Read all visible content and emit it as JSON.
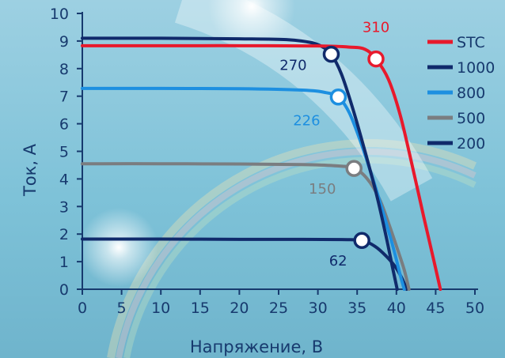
{
  "chart_data": {
    "type": "line",
    "title": "",
    "xlabel": "Напряжение, В",
    "ylabel": "Ток, А",
    "xlim": [
      0,
      50
    ],
    "ylim": [
      0,
      10
    ],
    "x_ticks": [
      0,
      5,
      10,
      15,
      20,
      25,
      30,
      35,
      40,
      45,
      50
    ],
    "y_ticks": [
      0,
      1,
      2,
      3,
      4,
      5,
      6,
      7,
      8,
      9,
      10
    ],
    "grid": false,
    "legend_position": "right",
    "series": [
      {
        "name": "STC",
        "color": "#e8192c",
        "points": [
          [
            0,
            8.83
          ],
          [
            10,
            8.83
          ],
          [
            20,
            8.83
          ],
          [
            30,
            8.82
          ],
          [
            34,
            8.78
          ],
          [
            36,
            8.7
          ],
          [
            37.4,
            8.35
          ],
          [
            39,
            7.6
          ],
          [
            40.5,
            6.3
          ],
          [
            42,
            4.5
          ],
          [
            43.5,
            2.6
          ],
          [
            44.8,
            1.0
          ],
          [
            45.6,
            0
          ]
        ],
        "mpp": {
          "x": 37.4,
          "y": 8.35,
          "label": "310"
        }
      },
      {
        "name": "1000",
        "color": "#102a6b",
        "points": [
          [
            0,
            9.1
          ],
          [
            10,
            9.1
          ],
          [
            20,
            9.08
          ],
          [
            26,
            9.05
          ],
          [
            29,
            8.95
          ],
          [
            30.5,
            8.8
          ],
          [
            31.7,
            8.52
          ],
          [
            33,
            7.8
          ],
          [
            34.5,
            6.5
          ],
          [
            36,
            5.0
          ],
          [
            37.5,
            3.4
          ],
          [
            38.7,
            1.9
          ],
          [
            39.5,
            0.8
          ],
          [
            40.1,
            0
          ]
        ],
        "mpp": {
          "x": 31.7,
          "y": 8.52,
          "label": "270"
        }
      },
      {
        "name": "800",
        "color": "#1d8fe0",
        "points": [
          [
            0,
            7.28
          ],
          [
            10,
            7.28
          ],
          [
            20,
            7.27
          ],
          [
            28,
            7.22
          ],
          [
            31,
            7.13
          ],
          [
            32.6,
            6.97
          ],
          [
            34,
            6.4
          ],
          [
            35.5,
            5.3
          ],
          [
            37,
            4.0
          ],
          [
            38.5,
            2.6
          ],
          [
            39.7,
            1.4
          ],
          [
            40.5,
            0.5
          ],
          [
            41,
            0
          ]
        ],
        "mpp": {
          "x": 32.6,
          "y": 6.97,
          "label": "226"
        }
      },
      {
        "name": "500",
        "color": "#7a7d80",
        "points": [
          [
            0,
            4.55
          ],
          [
            10,
            4.55
          ],
          [
            20,
            4.54
          ],
          [
            28,
            4.52
          ],
          [
            32,
            4.48
          ],
          [
            34.6,
            4.38
          ],
          [
            36.3,
            4.0
          ],
          [
            37.8,
            3.3
          ],
          [
            39,
            2.4
          ],
          [
            40.2,
            1.4
          ],
          [
            41,
            0.7
          ],
          [
            41.6,
            0
          ]
        ],
        "mpp": {
          "x": 34.6,
          "y": 4.38,
          "label": "150"
        }
      },
      {
        "name": "200",
        "color": "#102a6b",
        "points": [
          [
            0,
            1.82
          ],
          [
            10,
            1.82
          ],
          [
            20,
            1.81
          ],
          [
            28,
            1.81
          ],
          [
            33,
            1.8
          ],
          [
            35.6,
            1.77
          ],
          [
            37.3,
            1.55
          ],
          [
            38.7,
            1.2
          ],
          [
            39.9,
            0.8
          ],
          [
            40.7,
            0.4
          ],
          [
            41.3,
            0
          ]
        ],
        "mpp": {
          "x": 35.6,
          "y": 1.77,
          "label": "62"
        }
      }
    ]
  }
}
